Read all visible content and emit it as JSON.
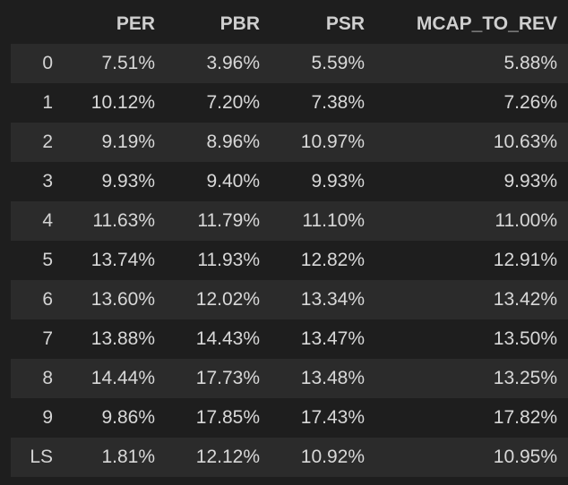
{
  "table": {
    "columns": [
      "",
      "PER",
      "PBR",
      "PSR",
      "MCAP_TO_REV"
    ],
    "rows": [
      {
        "index": "0",
        "values": [
          "7.51%",
          "3.96%",
          "5.59%",
          "5.88%"
        ]
      },
      {
        "index": "1",
        "values": [
          "10.12%",
          "7.20%",
          "7.38%",
          "7.26%"
        ]
      },
      {
        "index": "2",
        "values": [
          "9.19%",
          "8.96%",
          "10.97%",
          "10.63%"
        ]
      },
      {
        "index": "3",
        "values": [
          "9.93%",
          "9.40%",
          "9.93%",
          "9.93%"
        ]
      },
      {
        "index": "4",
        "values": [
          "11.63%",
          "11.79%",
          "11.10%",
          "11.00%"
        ]
      },
      {
        "index": "5",
        "values": [
          "13.74%",
          "11.93%",
          "12.82%",
          "12.91%"
        ]
      },
      {
        "index": "6",
        "values": [
          "13.60%",
          "12.02%",
          "13.34%",
          "13.42%"
        ]
      },
      {
        "index": "7",
        "values": [
          "13.88%",
          "14.43%",
          "13.47%",
          "13.50%"
        ]
      },
      {
        "index": "8",
        "values": [
          "14.44%",
          "17.73%",
          "13.48%",
          "13.25%"
        ]
      },
      {
        "index": "9",
        "values": [
          "9.86%",
          "17.85%",
          "17.43%",
          "17.82%"
        ]
      },
      {
        "index": "LS",
        "values": [
          "1.81%",
          "12.12%",
          "10.92%",
          "10.95%"
        ]
      }
    ]
  },
  "colors": {
    "background": "#1e1e1e",
    "stripe": "#2b2b2b",
    "text": "#d4d4d4"
  }
}
